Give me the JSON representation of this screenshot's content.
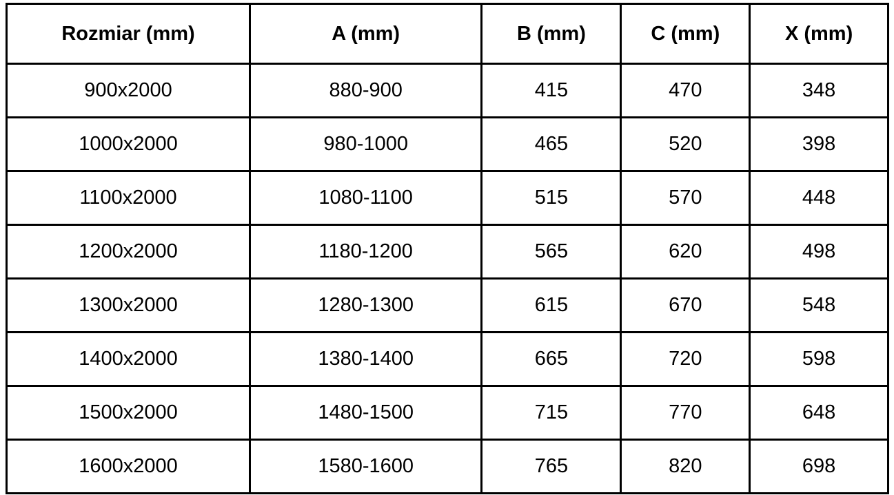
{
  "table": {
    "headers": [
      "Rozmiar (mm)",
      "A (mm)",
      "B (mm)",
      "C (mm)",
      "X (mm)"
    ],
    "rows": [
      [
        "900x2000",
        "880-900",
        "415",
        "470",
        "348"
      ],
      [
        "1000x2000",
        "980-1000",
        "465",
        "520",
        "398"
      ],
      [
        "1100x2000",
        "1080-1100",
        "515",
        "570",
        "448"
      ],
      [
        "1200x2000",
        "1180-1200",
        "565",
        "620",
        "498"
      ],
      [
        "1300x2000",
        "1280-1300",
        "615",
        "670",
        "548"
      ],
      [
        "1400x2000",
        "1380-1400",
        "665",
        "720",
        "598"
      ],
      [
        "1500x2000",
        "1480-1500",
        "715",
        "770",
        "648"
      ],
      [
        "1600x2000",
        "1580-1600",
        "765",
        "820",
        "698"
      ]
    ]
  },
  "colors": {
    "border": "#000000",
    "text": "#000000",
    "background": "#ffffff"
  }
}
